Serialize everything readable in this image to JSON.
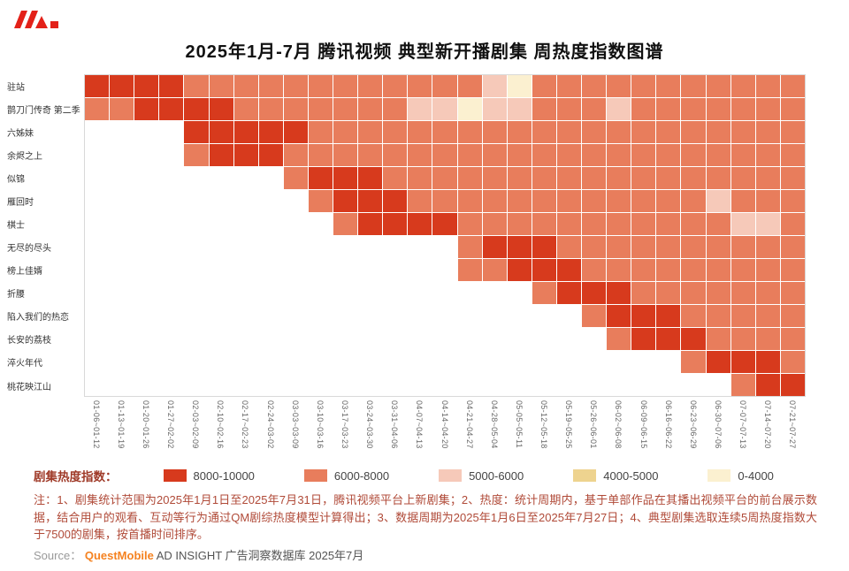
{
  "header": {
    "logo_icon": "questmobile-logo-icon"
  },
  "chart_data": {
    "type": "heatmap",
    "title": "2025年1月-7月 腾讯视频 典型新开播剧集 周热度指数图谱",
    "legend_title": "剧集热度指数：",
    "legend_position": "bottom",
    "grid": true,
    "rows": [
      "驻站",
      "鹊刀门传奇 第二季",
      "六姊妹",
      "余烬之上",
      "似锦",
      "雁回时",
      "棋士",
      "无尽的尽头",
      "榜上佳婿",
      "折腰",
      "陷入我们的热恋",
      "长安的荔枝",
      "淬火年代",
      "桃花映江山"
    ],
    "columns": [
      "01-06~01-12",
      "01-13~01-19",
      "01-20~01-26",
      "01-27~02-02",
      "02-03~02-09",
      "02-10~02-16",
      "02-17~02-23",
      "02-24~03-02",
      "03-03~03-09",
      "03-10~03-16",
      "03-17~03-23",
      "03-24~03-30",
      "03-31~04-06",
      "04-07~04-13",
      "04-14~04-20",
      "04-21~04-27",
      "04-28~05-04",
      "05-05~05-11",
      "05-12~05-18",
      "05-19~05-25",
      "05-26~06-01",
      "06-02~06-08",
      "06-09~06-15",
      "06-16~06-22",
      "06-23~06-29",
      "06-30~07-06",
      "07-07~07-13",
      "07-14~07-20",
      "07-21~07-27"
    ],
    "buckets": [
      {
        "id": 1,
        "label": "8000-10000",
        "color": "#d73a1d"
      },
      {
        "id": 2,
        "label": "6000-8000",
        "color": "#e87d5c"
      },
      {
        "id": 3,
        "label": "5000-6000",
        "color": "#f6c9b9"
      },
      {
        "id": 4,
        "label": "4000-5000",
        "color": "#eed38f"
      },
      {
        "id": 5,
        "label": "0-4000",
        "color": "#fbf0d0"
      }
    ],
    "empty_color": "#ffffff",
    "matrix": [
      [
        1,
        1,
        1,
        1,
        2,
        2,
        2,
        2,
        2,
        2,
        2,
        2,
        2,
        2,
        2,
        2,
        3,
        5,
        2,
        2,
        2,
        2,
        2,
        2,
        2,
        2,
        2,
        2,
        2
      ],
      [
        2,
        2,
        1,
        1,
        1,
        1,
        2,
        2,
        2,
        2,
        2,
        2,
        2,
        3,
        3,
        5,
        3,
        3,
        2,
        2,
        2,
        3,
        2,
        2,
        2,
        2,
        2,
        2,
        2
      ],
      [
        0,
        0,
        0,
        0,
        1,
        1,
        1,
        1,
        1,
        2,
        2,
        2,
        2,
        2,
        2,
        2,
        2,
        2,
        2,
        2,
        2,
        2,
        2,
        2,
        2,
        2,
        2,
        2,
        2
      ],
      [
        0,
        0,
        0,
        0,
        2,
        1,
        1,
        1,
        2,
        2,
        2,
        2,
        2,
        2,
        2,
        2,
        2,
        2,
        2,
        2,
        2,
        2,
        2,
        2,
        2,
        2,
        2,
        2,
        2
      ],
      [
        0,
        0,
        0,
        0,
        0,
        0,
        0,
        0,
        2,
        1,
        1,
        1,
        2,
        2,
        2,
        2,
        2,
        2,
        2,
        2,
        2,
        2,
        2,
        2,
        2,
        2,
        2,
        2,
        2
      ],
      [
        0,
        0,
        0,
        0,
        0,
        0,
        0,
        0,
        0,
        2,
        1,
        1,
        1,
        2,
        2,
        2,
        2,
        2,
        2,
        2,
        2,
        2,
        2,
        2,
        2,
        3,
        2,
        2,
        2
      ],
      [
        0,
        0,
        0,
        0,
        0,
        0,
        0,
        0,
        0,
        0,
        2,
        1,
        1,
        1,
        1,
        2,
        2,
        2,
        2,
        2,
        2,
        2,
        2,
        2,
        2,
        2,
        3,
        3,
        2
      ],
      [
        0,
        0,
        0,
        0,
        0,
        0,
        0,
        0,
        0,
        0,
        0,
        0,
        0,
        0,
        0,
        2,
        1,
        1,
        1,
        2,
        2,
        2,
        2,
        2,
        2,
        2,
        2,
        2,
        2
      ],
      [
        0,
        0,
        0,
        0,
        0,
        0,
        0,
        0,
        0,
        0,
        0,
        0,
        0,
        0,
        0,
        2,
        2,
        1,
        1,
        1,
        2,
        2,
        2,
        2,
        2,
        2,
        2,
        2,
        2
      ],
      [
        0,
        0,
        0,
        0,
        0,
        0,
        0,
        0,
        0,
        0,
        0,
        0,
        0,
        0,
        0,
        0,
        0,
        0,
        2,
        1,
        1,
        1,
        2,
        2,
        2,
        2,
        2,
        2,
        2
      ],
      [
        0,
        0,
        0,
        0,
        0,
        0,
        0,
        0,
        0,
        0,
        0,
        0,
        0,
        0,
        0,
        0,
        0,
        0,
        0,
        0,
        2,
        1,
        1,
        1,
        2,
        2,
        2,
        2,
        2
      ],
      [
        0,
        0,
        0,
        0,
        0,
        0,
        0,
        0,
        0,
        0,
        0,
        0,
        0,
        0,
        0,
        0,
        0,
        0,
        0,
        0,
        0,
        2,
        1,
        1,
        1,
        2,
        2,
        2,
        2
      ],
      [
        0,
        0,
        0,
        0,
        0,
        0,
        0,
        0,
        0,
        0,
        0,
        0,
        0,
        0,
        0,
        0,
        0,
        0,
        0,
        0,
        0,
        0,
        0,
        0,
        2,
        1,
        1,
        1,
        2
      ],
      [
        0,
        0,
        0,
        0,
        0,
        0,
        0,
        0,
        0,
        0,
        0,
        0,
        0,
        0,
        0,
        0,
        0,
        0,
        0,
        0,
        0,
        0,
        0,
        0,
        0,
        0,
        2,
        1,
        1
      ]
    ]
  },
  "notes": {
    "text": "注：1、剧集统计范围为2025年1月1日至2025年7月31日，腾讯视频平台上新剧集；2、热度：统计周期内，基于单部作品在其播出视频平台的前台展示数据，结合用户的观看、互动等行为通过QM剧综热度模型计算得出；3、数据周期为2025年1月6日至2025年7月27日；4、典型剧集选取连续5周热度指数大于7500的剧集，按首播时间排序。"
  },
  "source": {
    "prefix": "Source：",
    "brand": "QuestMobile",
    "suffix": " AD INSIGHT 广告洞察数据库 2025年7月"
  },
  "colors": {
    "note_text": "#b04a38",
    "legend_title": "#9f3a28",
    "brand_orange": "#f58220",
    "logo_red": "#e32119"
  }
}
